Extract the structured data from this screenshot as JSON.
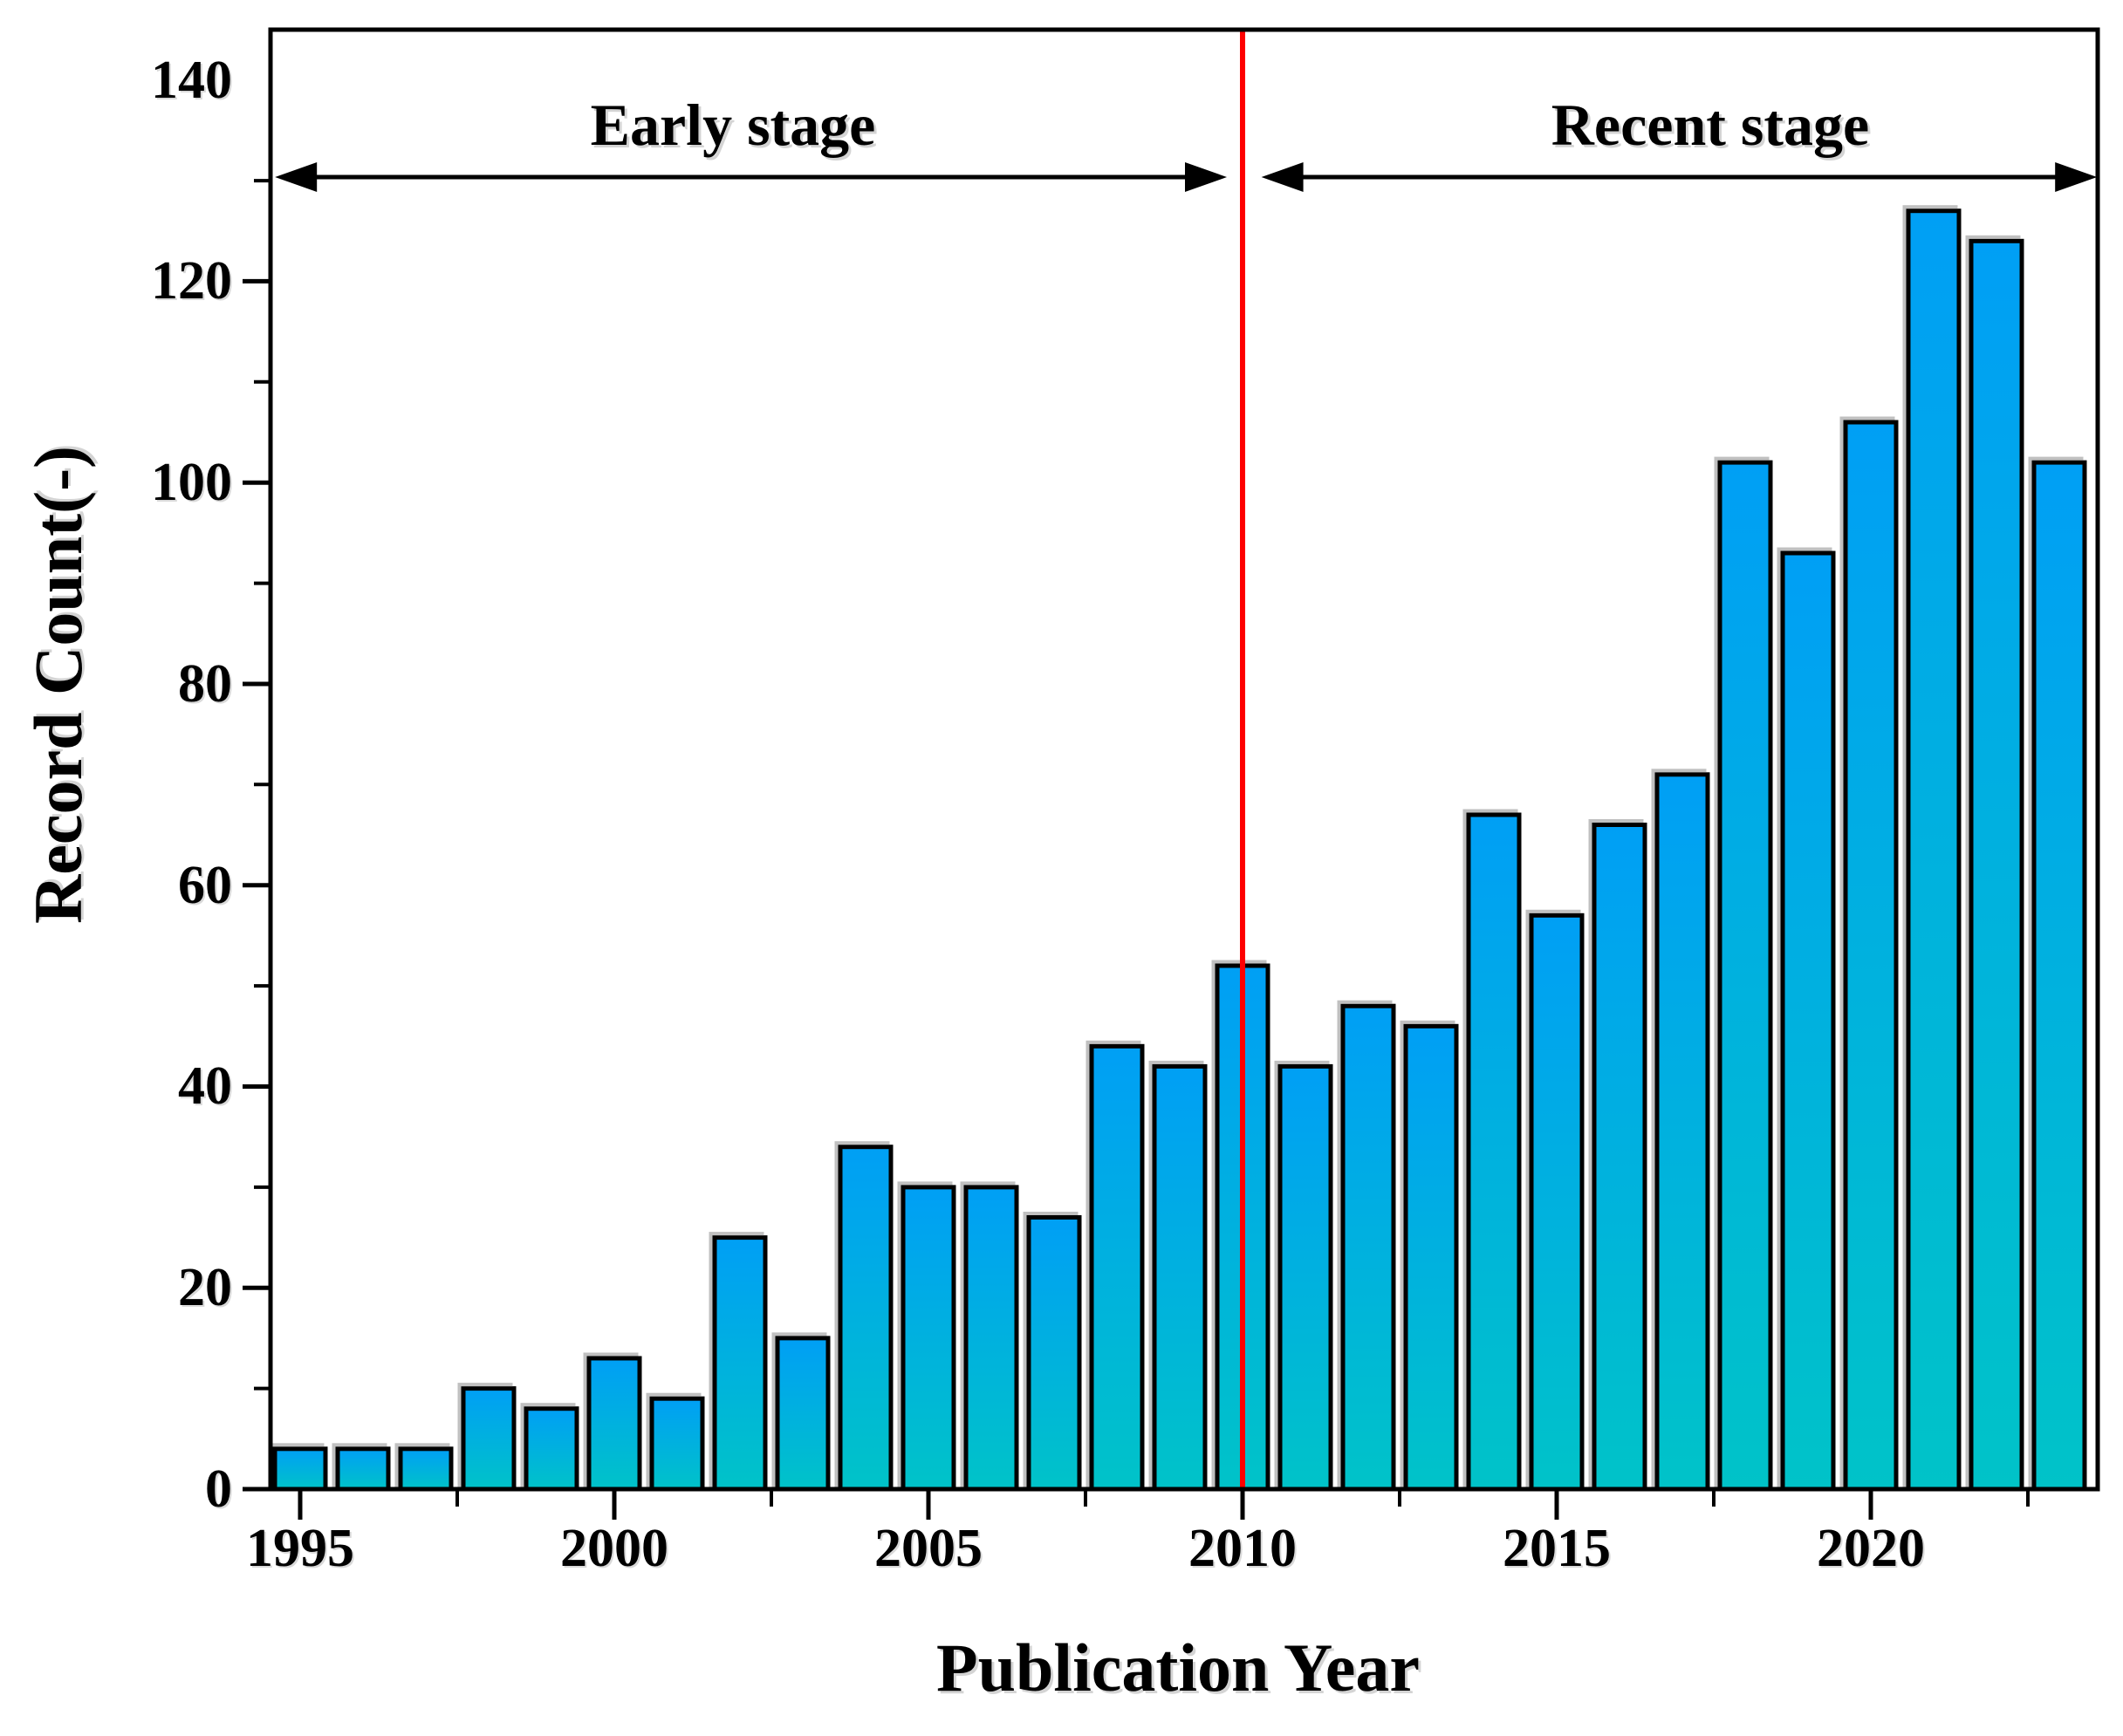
{
  "figure": {
    "background": "#ffffff",
    "y_axis_title": "Record Count(-)",
    "x_axis_title": "Publication Year"
  },
  "chart_data": {
    "type": "bar",
    "title": "",
    "xlabel": "Publication Year",
    "ylabel": "Record Count(-)",
    "x": [
      1995,
      1996,
      1997,
      1998,
      1999,
      2000,
      2001,
      2002,
      2003,
      2004,
      2005,
      2006,
      2007,
      2008,
      2009,
      2010,
      2011,
      2012,
      2013,
      2014,
      2015,
      2016,
      2017,
      2018,
      2019,
      2020,
      2021,
      2022,
      2023
    ],
    "values": [
      4,
      4,
      4,
      10,
      8,
      13,
      9,
      25,
      15,
      34,
      30,
      30,
      27,
      44,
      42,
      52,
      42,
      48,
      46,
      67,
      57,
      66,
      71,
      102,
      93,
      106,
      127,
      124,
      102
    ],
    "ylim": [
      0,
      145
    ],
    "y_major_tick_step": 20,
    "y_minor_tick_step": 10,
    "x_major_ticks": [
      1995,
      2000,
      2005,
      2010,
      2015,
      2020
    ],
    "x_minor_ticks": [
      1997.5,
      2002.5,
      2007.5,
      2012.5,
      2017.5,
      2022.5
    ],
    "grid": "off",
    "legend": "none",
    "divider_year": 2010,
    "stages": {
      "early": {
        "label": "Early stage",
        "from_year": 1994.6,
        "to_year": 2009.75
      },
      "recent": {
        "label": "Recent stage",
        "from_year": 2010.3,
        "to_year": 2023.6
      }
    },
    "colors": {
      "bar_gradient_top": "#059ff5",
      "bar_gradient_bottom": "#00c3c8",
      "bar_border": "#000000",
      "divider_line": "#fe0000",
      "axis": "#000000",
      "text": "#000000"
    }
  }
}
